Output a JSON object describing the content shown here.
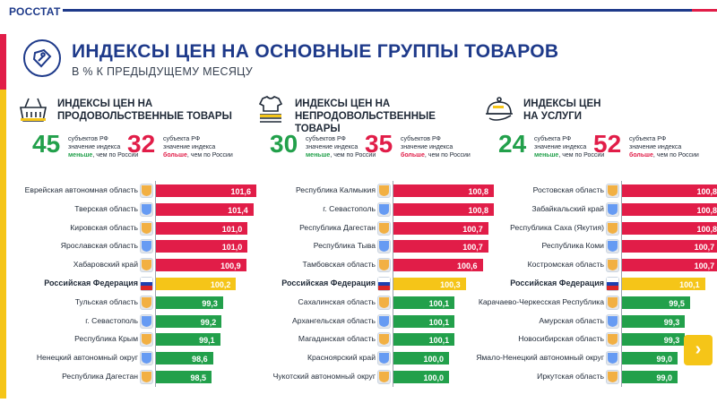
{
  "brand": "РОССТАТ",
  "title": "ИНДЕКСЫ ЦЕН НА ОСНОВНЫЕ ГРУППЫ ТОВАРОВ",
  "subtitle": "В % К ПРЕДЫДУЩЕМУ МЕСЯЦУ",
  "colors": {
    "red": "#e11d48",
    "green": "#22a04b",
    "yellow": "#f5c518",
    "blue": "#1e3a8a"
  },
  "panels": [
    {
      "icon": "grocery-basket-icon",
      "title_line1": "ИНДЕКСЫ ЦЕН НА",
      "title_line2": "ПРОДОВОЛЬСТВЕННЫЕ ТОВАРЫ",
      "less": {
        "num": "45",
        "label": "субъектов РФ",
        "line2": "значение индекса",
        "emph": "меньше",
        "tail": ", чем по России"
      },
      "more": {
        "num": "32",
        "label": "субъекта РФ",
        "line2": "значение индекса",
        "emph": "больше",
        "tail": ", чем по России"
      },
      "rows": [
        {
          "name": "Еврейская автономная область",
          "value": "101,6",
          "n": 101.6,
          "kind": "up",
          "bold": false
        },
        {
          "name": "Тверская область",
          "value": "101,4",
          "n": 101.4,
          "kind": "up",
          "bold": false
        },
        {
          "name": "Кировская область",
          "value": "101,0",
          "n": 101.0,
          "kind": "up",
          "bold": false
        },
        {
          "name": "Ярославская область",
          "value": "101,0",
          "n": 101.0,
          "kind": "up",
          "bold": false
        },
        {
          "name": "Хабаровский край",
          "value": "100,9",
          "n": 100.9,
          "kind": "up",
          "bold": false
        },
        {
          "name": "Российская Федерация",
          "value": "100,2",
          "n": 100.2,
          "kind": "rf",
          "bold": true
        },
        {
          "name": "Тульская область",
          "value": "99,3",
          "n": 99.3,
          "kind": "down",
          "bold": false
        },
        {
          "name": "г. Севастополь",
          "value": "99,2",
          "n": 99.2,
          "kind": "down",
          "bold": false
        },
        {
          "name": "Республика Крым",
          "value": "99,1",
          "n": 99.1,
          "kind": "down",
          "bold": false
        },
        {
          "name": "Ненецкий автономный округ",
          "value": "98,6",
          "n": 98.6,
          "kind": "down",
          "bold": false
        },
        {
          "name": "Республика Дагестан",
          "value": "98,5",
          "n": 98.5,
          "kind": "down",
          "bold": false
        }
      ]
    },
    {
      "icon": "clothes-stack-icon",
      "title_line1": "ИНДЕКСЫ ЦЕН НА",
      "title_line2": "НЕПРОДОВОЛЬСТВЕННЫЕ ТОВАРЫ",
      "less": {
        "num": "30",
        "label": "субъектов РФ",
        "line2": "значение индекса",
        "emph": "меньше",
        "tail": ", чем по России"
      },
      "more": {
        "num": "35",
        "label": "субъектов РФ",
        "line2": "значение индекса",
        "emph": "больше",
        "tail": ", чем по России"
      },
      "rows": [
        {
          "name": "Республика Калмыкия",
          "value": "100,8",
          "n": 100.8,
          "kind": "up",
          "bold": false
        },
        {
          "name": "г. Севастополь",
          "value": "100,8",
          "n": 100.8,
          "kind": "up",
          "bold": false
        },
        {
          "name": "Республика Дагестан",
          "value": "100,7",
          "n": 100.7,
          "kind": "up",
          "bold": false
        },
        {
          "name": "Республика Тыва",
          "value": "100,7",
          "n": 100.7,
          "kind": "up",
          "bold": false
        },
        {
          "name": "Тамбовская область",
          "value": "100,6",
          "n": 100.6,
          "kind": "up",
          "bold": false
        },
        {
          "name": "Российская Федерация",
          "value": "100,3",
          "n": 100.3,
          "kind": "rf",
          "bold": true
        },
        {
          "name": "Сахалинская область",
          "value": "100,1",
          "n": 100.1,
          "kind": "down",
          "bold": false
        },
        {
          "name": "Архангельская область",
          "value": "100,1",
          "n": 100.1,
          "kind": "down",
          "bold": false
        },
        {
          "name": "Магаданская область",
          "value": "100,1",
          "n": 100.1,
          "kind": "down",
          "bold": false
        },
        {
          "name": "Красноярский край",
          "value": "100,0",
          "n": 100.0,
          "kind": "down",
          "bold": false
        },
        {
          "name": "Чукотский автономный округ",
          "value": "100,0",
          "n": 100.0,
          "kind": "down",
          "bold": false
        }
      ]
    },
    {
      "icon": "service-cloche-icon",
      "title_line1": "ИНДЕКСЫ ЦЕН",
      "title_line2": "НА УСЛУГИ",
      "less": {
        "num": "24",
        "label": "субъекта РФ",
        "line2": "значение индекса",
        "emph": "меньше",
        "tail": ", чем по России"
      },
      "more": {
        "num": "52",
        "label": "субъекта РФ",
        "line2": "значение индекса",
        "emph": "больше",
        "tail": ", чем по России"
      },
      "rows": [
        {
          "name": "Ростовская область",
          "value": "100,8",
          "n": 100.8,
          "kind": "up",
          "bold": false
        },
        {
          "name": "Забайкальский край",
          "value": "100,8",
          "n": 100.8,
          "kind": "up",
          "bold": false
        },
        {
          "name": "Республика Саха (Якутия)",
          "value": "100,8",
          "n": 100.8,
          "kind": "up",
          "bold": false
        },
        {
          "name": "Республика Коми",
          "value": "100,7",
          "n": 100.7,
          "kind": "up",
          "bold": false
        },
        {
          "name": "Костромская область",
          "value": "100,7",
          "n": 100.7,
          "kind": "up",
          "bold": false
        },
        {
          "name": "Российская Федерация",
          "value": "100,1",
          "n": 100.1,
          "kind": "rf",
          "bold": true
        },
        {
          "name": "Карачаево-Черкесская Республика",
          "value": "99,5",
          "n": 99.5,
          "kind": "down",
          "bold": false
        },
        {
          "name": "Амурская область",
          "value": "99,3",
          "n": 99.3,
          "kind": "down",
          "bold": false
        },
        {
          "name": "Новосибирская область",
          "value": "99,3",
          "n": 99.3,
          "kind": "down",
          "bold": false
        },
        {
          "name": "Ямало-Ненецкий автономный округ",
          "value": "99,0",
          "n": 99.0,
          "kind": "down",
          "bold": false
        },
        {
          "name": "Иркутская область",
          "value": "99,0",
          "n": 99.0,
          "kind": "down",
          "bold": false
        }
      ]
    }
  ],
  "next_button": {
    "icon": "chevron-right-icon",
    "label": "›"
  }
}
